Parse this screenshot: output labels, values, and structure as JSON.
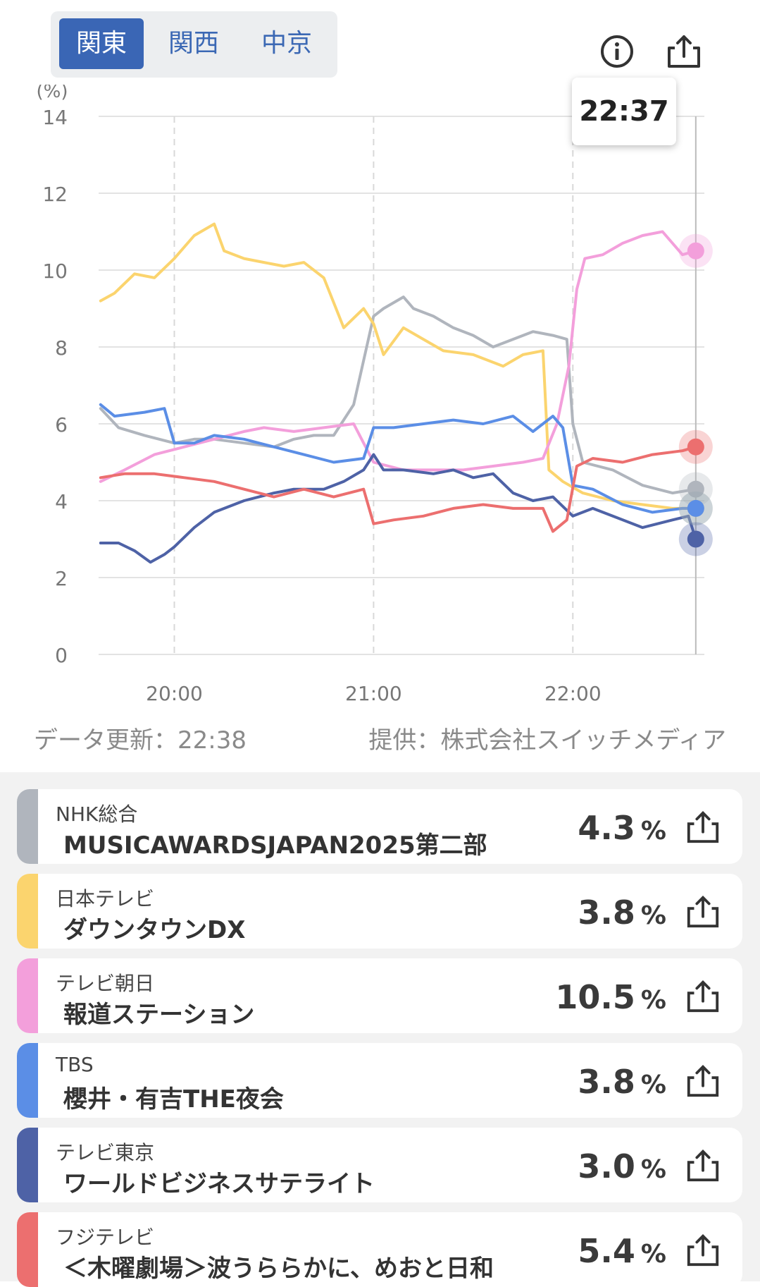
{
  "region_tabs": [
    {
      "label": "関東",
      "active": true
    },
    {
      "label": "関西",
      "active": false
    },
    {
      "label": "中京",
      "active": false
    }
  ],
  "icons": {
    "info": "info-icon",
    "share": "share-icon"
  },
  "tooltip_time": "22:37",
  "footer": {
    "updated": "データ更新：22:38",
    "provider": "提供：株式会社スイッチメディア"
  },
  "chart_data": {
    "type": "line",
    "ylabel": "(%)",
    "ylim": [
      0,
      14
    ],
    "yticks": [
      "0",
      "2",
      "4",
      "6",
      "8",
      "10",
      "12",
      "14"
    ],
    "xticks": [
      {
        "t": 20.0,
        "label": "20:00"
      },
      {
        "t": 21.0,
        "label": "21:00"
      },
      {
        "t": 22.0,
        "label": "22:00"
      }
    ],
    "xlim": [
      19.62,
      22.66
    ],
    "cursor_t": 22.617,
    "grid": true,
    "series": [
      {
        "name": "NHK総合",
        "color": "#b0b5bd",
        "points": [
          [
            19.63,
            6.4
          ],
          [
            19.72,
            5.9
          ],
          [
            19.85,
            5.7
          ],
          [
            20.0,
            5.5
          ],
          [
            20.1,
            5.6
          ],
          [
            20.2,
            5.6
          ],
          [
            20.35,
            5.5
          ],
          [
            20.5,
            5.4
          ],
          [
            20.6,
            5.6
          ],
          [
            20.7,
            5.7
          ],
          [
            20.8,
            5.7
          ],
          [
            20.9,
            6.5
          ],
          [
            21.0,
            8.8
          ],
          [
            21.05,
            9.0
          ],
          [
            21.15,
            9.3
          ],
          [
            21.2,
            9.0
          ],
          [
            21.3,
            8.8
          ],
          [
            21.4,
            8.5
          ],
          [
            21.5,
            8.3
          ],
          [
            21.6,
            8.0
          ],
          [
            21.7,
            8.2
          ],
          [
            21.8,
            8.4
          ],
          [
            21.9,
            8.3
          ],
          [
            21.97,
            8.2
          ],
          [
            22.0,
            6.0
          ],
          [
            22.05,
            5.0
          ],
          [
            22.2,
            4.8
          ],
          [
            22.35,
            4.4
          ],
          [
            22.5,
            4.2
          ],
          [
            22.617,
            4.3
          ]
        ]
      },
      {
        "name": "日本テレビ",
        "color": "#fbd46e",
        "points": [
          [
            19.63,
            9.2
          ],
          [
            19.7,
            9.4
          ],
          [
            19.8,
            9.9
          ],
          [
            19.9,
            9.8
          ],
          [
            20.0,
            10.3
          ],
          [
            20.1,
            10.9
          ],
          [
            20.2,
            11.2
          ],
          [
            20.25,
            10.5
          ],
          [
            20.35,
            10.3
          ],
          [
            20.45,
            10.2
          ],
          [
            20.55,
            10.1
          ],
          [
            20.65,
            10.2
          ],
          [
            20.75,
            9.8
          ],
          [
            20.85,
            8.5
          ],
          [
            20.95,
            9.0
          ],
          [
            21.0,
            8.6
          ],
          [
            21.05,
            7.8
          ],
          [
            21.15,
            8.5
          ],
          [
            21.25,
            8.2
          ],
          [
            21.35,
            7.9
          ],
          [
            21.5,
            7.8
          ],
          [
            21.65,
            7.5
          ],
          [
            21.75,
            7.8
          ],
          [
            21.85,
            7.9
          ],
          [
            21.88,
            4.8
          ],
          [
            21.95,
            4.5
          ],
          [
            22.05,
            4.2
          ],
          [
            22.2,
            4.0
          ],
          [
            22.35,
            3.9
          ],
          [
            22.5,
            3.8
          ],
          [
            22.617,
            3.8
          ]
        ]
      },
      {
        "name": "テレビ朝日",
        "color": "#f39fdb",
        "points": [
          [
            19.63,
            4.5
          ],
          [
            19.75,
            4.8
          ],
          [
            19.9,
            5.2
          ],
          [
            20.05,
            5.4
          ],
          [
            20.2,
            5.6
          ],
          [
            20.35,
            5.8
          ],
          [
            20.45,
            5.9
          ],
          [
            20.6,
            5.8
          ],
          [
            20.75,
            5.9
          ],
          [
            20.9,
            6.0
          ],
          [
            21.0,
            5.0
          ],
          [
            21.15,
            4.8
          ],
          [
            21.3,
            4.8
          ],
          [
            21.45,
            4.8
          ],
          [
            21.6,
            4.9
          ],
          [
            21.75,
            5.0
          ],
          [
            21.85,
            5.1
          ],
          [
            21.92,
            6.0
          ],
          [
            21.98,
            7.5
          ],
          [
            22.02,
            9.5
          ],
          [
            22.06,
            10.3
          ],
          [
            22.15,
            10.4
          ],
          [
            22.25,
            10.7
          ],
          [
            22.35,
            10.9
          ],
          [
            22.45,
            11.0
          ],
          [
            22.55,
            10.4
          ],
          [
            22.617,
            10.5
          ]
        ]
      },
      {
        "name": "TBS",
        "color": "#5b8ee6",
        "points": [
          [
            19.63,
            6.5
          ],
          [
            19.7,
            6.2
          ],
          [
            19.85,
            6.3
          ],
          [
            19.95,
            6.4
          ],
          [
            20.0,
            5.5
          ],
          [
            20.1,
            5.5
          ],
          [
            20.2,
            5.7
          ],
          [
            20.35,
            5.6
          ],
          [
            20.5,
            5.4
          ],
          [
            20.65,
            5.2
          ],
          [
            20.8,
            5.0
          ],
          [
            20.95,
            5.1
          ],
          [
            21.0,
            5.9
          ],
          [
            21.1,
            5.9
          ],
          [
            21.25,
            6.0
          ],
          [
            21.4,
            6.1
          ],
          [
            21.55,
            6.0
          ],
          [
            21.7,
            6.2
          ],
          [
            21.8,
            5.8
          ],
          [
            21.9,
            6.2
          ],
          [
            21.95,
            5.9
          ],
          [
            22.0,
            4.4
          ],
          [
            22.1,
            4.3
          ],
          [
            22.25,
            3.9
          ],
          [
            22.4,
            3.7
          ],
          [
            22.55,
            3.8
          ],
          [
            22.617,
            3.8
          ]
        ]
      },
      {
        "name": "テレビ東京",
        "color": "#4e62a6",
        "points": [
          [
            19.63,
            2.9
          ],
          [
            19.72,
            2.9
          ],
          [
            19.8,
            2.7
          ],
          [
            19.88,
            2.4
          ],
          [
            19.95,
            2.6
          ],
          [
            20.0,
            2.8
          ],
          [
            20.1,
            3.3
          ],
          [
            20.2,
            3.7
          ],
          [
            20.35,
            4.0
          ],
          [
            20.5,
            4.2
          ],
          [
            20.6,
            4.3
          ],
          [
            20.75,
            4.3
          ],
          [
            20.85,
            4.5
          ],
          [
            20.95,
            4.8
          ],
          [
            21.0,
            5.2
          ],
          [
            21.05,
            4.8
          ],
          [
            21.15,
            4.8
          ],
          [
            21.3,
            4.7
          ],
          [
            21.4,
            4.8
          ],
          [
            21.5,
            4.6
          ],
          [
            21.6,
            4.7
          ],
          [
            21.7,
            4.2
          ],
          [
            21.8,
            4.0
          ],
          [
            21.9,
            4.1
          ],
          [
            22.0,
            3.6
          ],
          [
            22.1,
            3.8
          ],
          [
            22.2,
            3.6
          ],
          [
            22.35,
            3.3
          ],
          [
            22.5,
            3.5
          ],
          [
            22.58,
            3.6
          ],
          [
            22.617,
            3.0
          ]
        ]
      },
      {
        "name": "フジテレビ",
        "color": "#ec6f6f",
        "points": [
          [
            19.63,
            4.6
          ],
          [
            19.75,
            4.7
          ],
          [
            19.9,
            4.7
          ],
          [
            20.05,
            4.6
          ],
          [
            20.2,
            4.5
          ],
          [
            20.35,
            4.3
          ],
          [
            20.5,
            4.1
          ],
          [
            20.65,
            4.3
          ],
          [
            20.8,
            4.1
          ],
          [
            20.95,
            4.3
          ],
          [
            21.0,
            3.4
          ],
          [
            21.1,
            3.5
          ],
          [
            21.25,
            3.6
          ],
          [
            21.4,
            3.8
          ],
          [
            21.55,
            3.9
          ],
          [
            21.7,
            3.8
          ],
          [
            21.85,
            3.8
          ],
          [
            21.9,
            3.2
          ],
          [
            21.97,
            3.5
          ],
          [
            22.02,
            4.9
          ],
          [
            22.1,
            5.1
          ],
          [
            22.25,
            5.0
          ],
          [
            22.4,
            5.2
          ],
          [
            22.55,
            5.3
          ],
          [
            22.617,
            5.4
          ]
        ]
      }
    ]
  },
  "programs": [
    {
      "channel": "NHK総合",
      "title": "MUSICAWARDSJAPAN2025第二部",
      "value": "4.3",
      "unit": "%",
      "color": "#b0b5bd"
    },
    {
      "channel": "日本テレビ",
      "title": "ダウンタウンDX",
      "value": "3.8",
      "unit": "%",
      "color": "#fbd46e"
    },
    {
      "channel": "テレビ朝日",
      "title": "報道ステーション",
      "value": "10.5",
      "unit": "%",
      "color": "#f39fdb"
    },
    {
      "channel": "TBS",
      "title": "櫻井・有吉THE夜会",
      "value": "3.8",
      "unit": "%",
      "color": "#5b8ee6"
    },
    {
      "channel": "テレビ東京",
      "title": "ワールドビジネスサテライト",
      "value": "3.0",
      "unit": "%",
      "color": "#4e62a6"
    },
    {
      "channel": "フジテレビ",
      "title": "＜木曜劇場＞波うららかに、めおと日和",
      "value": "5.4",
      "unit": "%",
      "color": "#ec6f6f"
    }
  ]
}
